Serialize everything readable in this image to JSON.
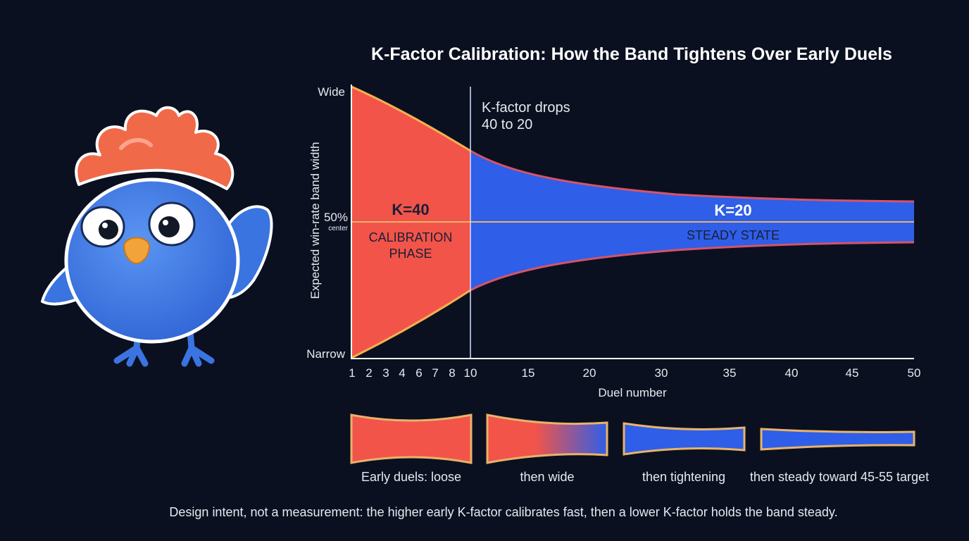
{
  "title": "K-Factor Calibration: How the Band Tightens Over Early Duels",
  "y_axis": {
    "label": "Expected win-rate band width",
    "top": "Wide",
    "center_pct": "50%",
    "center_word": "center",
    "bottom": "Narrow"
  },
  "x_axis": {
    "label": "Duel number",
    "ticks": [
      "1",
      "2",
      "3",
      "4",
      "6",
      "7",
      "8",
      "10",
      "15",
      "20",
      "30",
      "35",
      "40",
      "45",
      "50"
    ]
  },
  "annotation": {
    "line1": "K-factor drops",
    "line2": "40 to 20"
  },
  "phases": {
    "calibration": {
      "k": "K=40",
      "line1": "CALIBRATION",
      "line2": "PHASE",
      "color": "#f25449"
    },
    "steady": {
      "k": "K=20",
      "line1": "STEADY STATE",
      "color": "#2f5ee8"
    }
  },
  "stages": [
    {
      "caption": "Early duels: loose"
    },
    {
      "caption": "then wide"
    },
    {
      "caption": "then tightening"
    },
    {
      "caption": "then steady toward 45-55 target"
    }
  ],
  "footer": "Design intent, not a measurement: the higher early K-factor calibrates fast, then a lower K-factor holds the band steady.",
  "colors": {
    "background": "#0b1020",
    "red": "#f25449",
    "blue": "#2f5ee8",
    "outline": "#e8b36a",
    "mascot_body": "#3d7be6",
    "mascot_crest": "#f06a4a",
    "mascot_beak": "#f2a43a"
  }
}
